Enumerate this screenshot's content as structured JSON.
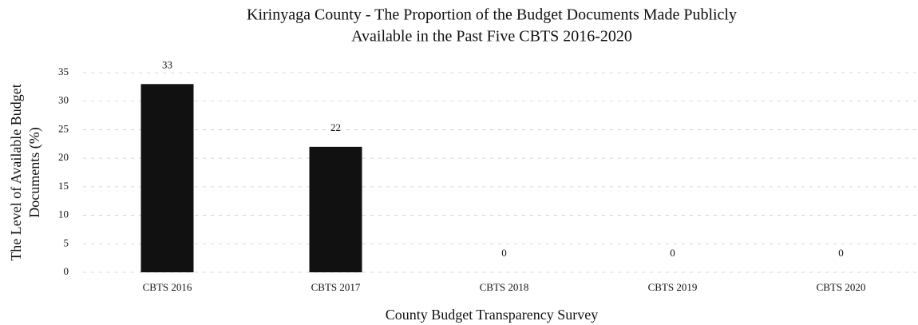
{
  "chart_data": {
    "type": "bar",
    "title": [
      "Kirinyaga County - The Proportion of the Budget Documents Made Publicly",
      "Available in the Past Five CBTS 2016-2020"
    ],
    "x_label": "County Budget Transparency Survey",
    "y_label": [
      "The Level of Available Budget",
      "Documents (%)"
    ],
    "categories": [
      "CBTS 2016",
      "CBTS 2017",
      "CBTS 2018",
      "CBTS 2019",
      "CBTS 2020"
    ],
    "values": [
      33,
      22,
      0,
      0,
      0
    ],
    "color": "#111111",
    "ylim": [
      0,
      35
    ],
    "yticks": [
      0,
      5,
      10,
      15,
      20,
      25,
      30,
      35
    ],
    "grid": true
  }
}
